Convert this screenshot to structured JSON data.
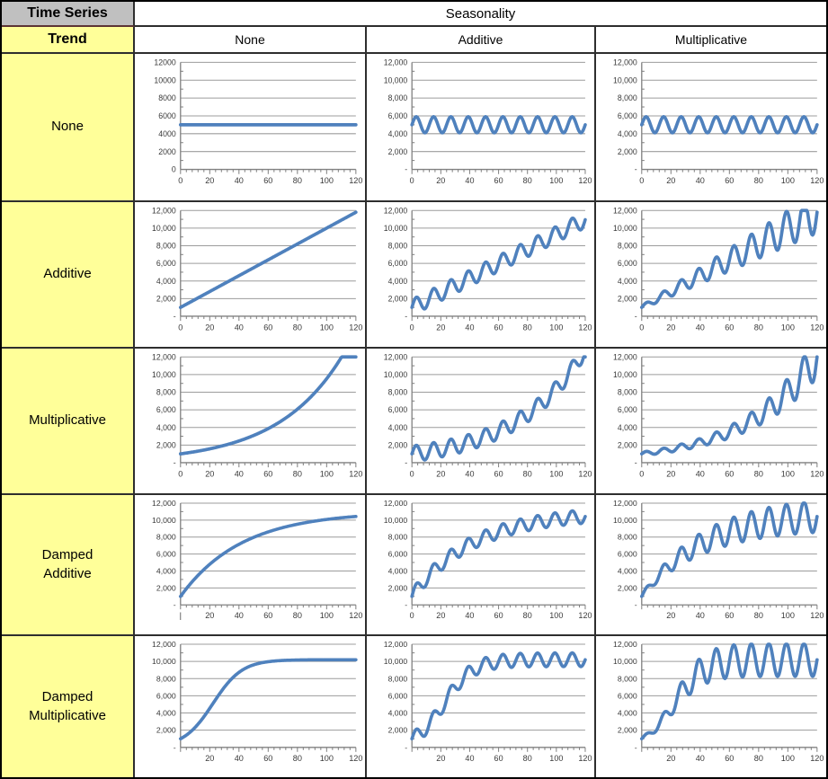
{
  "table": {
    "corner_label": "Time Series",
    "seasonality_header": "Seasonality",
    "trend_header": "Trend",
    "col_headers": [
      "None",
      "Additive",
      "Multiplicative"
    ],
    "row_headers": [
      "None",
      "Additive",
      "Multiplicative",
      "Damped\nAdditive",
      "Damped\nMultiplicative"
    ]
  },
  "colors": {
    "line": "#4f81bd",
    "grid": "#9c9c9c",
    "axis": "#808080",
    "tick_label": "#3a3a3a",
    "row_header_bg": "#ffff99",
    "corner_bg": "#c0c0c0"
  },
  "chart_defaults": {
    "xlim": [
      0,
      120
    ],
    "ylim": [
      0,
      12000
    ],
    "y_grid_step": 2000,
    "x_label_step": 20,
    "x_minor_tick_step": 4,
    "seasonal_period": 12,
    "grid": true,
    "legend": false
  },
  "chart_data": [
    {
      "type": "line",
      "row": "None",
      "col": "None",
      "period": 12,
      "y_tick_labels": [
        "12000",
        "10000",
        "8000",
        "6000",
        "4000",
        "2000",
        "0"
      ],
      "x_tick_labels": [
        "0",
        "20",
        "40",
        "60",
        "80",
        "100",
        "120"
      ],
      "model": {
        "trend": "flat",
        "level": 5000,
        "seasonality": "none"
      },
      "summary": {
        "start": 5000,
        "end": 5000
      }
    },
    {
      "type": "line",
      "row": "None",
      "col": "Additive",
      "period": 12,
      "y_tick_labels": [
        "12,000",
        "10,000",
        "8,000",
        "6,000",
        "4,000",
        "2,000",
        "-"
      ],
      "x_tick_labels": [
        "0",
        "20",
        "40",
        "60",
        "80",
        "100",
        "120"
      ],
      "model": {
        "trend": "flat",
        "level": 5000,
        "seasonality": "additive",
        "amp": 900
      },
      "summary": {
        "oscillates_between": [
          4100,
          5900
        ]
      }
    },
    {
      "type": "line",
      "row": "None",
      "col": "Multiplicative",
      "period": 12,
      "y_tick_labels": [
        "12,000",
        "10,000",
        "8,000",
        "6,000",
        "4,000",
        "2,000",
        "-"
      ],
      "x_tick_labels": [
        "0",
        "20",
        "40",
        "60",
        "80",
        "100",
        "120"
      ],
      "model": {
        "trend": "flat",
        "level": 5000,
        "seasonality": "multiplicative",
        "rel": 0.18
      },
      "summary": {
        "oscillates_between": [
          4100,
          5900
        ]
      }
    },
    {
      "type": "line",
      "row": "Additive",
      "col": "None",
      "period": 12,
      "y_tick_labels": [
        "12,000",
        "10,000",
        "8,000",
        "6,000",
        "4,000",
        "2,000",
        "-"
      ],
      "x_tick_labels": [
        "0",
        "20",
        "40",
        "60",
        "80",
        "100",
        "120"
      ],
      "model": {
        "trend": "linear",
        "base": 1000,
        "slope": 90,
        "seasonality": "none"
      },
      "summary": {
        "start": 1000,
        "end": 11800
      }
    },
    {
      "type": "line",
      "row": "Additive",
      "col": "Additive",
      "period": 12,
      "y_tick_labels": [
        "12,000",
        "10,000",
        "8,000",
        "6,000",
        "4,000",
        "2,000",
        "-"
      ],
      "x_tick_labels": [
        "0",
        "20",
        "40",
        "60",
        "80",
        "100",
        "120"
      ],
      "model": {
        "trend": "linear",
        "base": 1000,
        "slope": 83,
        "seasonality": "additive",
        "amp": 900
      },
      "summary": {
        "start": 1000,
        "end_center": 11000,
        "osc_amp": 900
      }
    },
    {
      "type": "line",
      "row": "Additive",
      "col": "Multiplicative",
      "period": 12,
      "y_tick_labels": [
        "12,000",
        "10,000",
        "8,000",
        "6,000",
        "4,000",
        "2,000",
        "-"
      ],
      "x_tick_labels": [
        "0",
        "20",
        "40",
        "60",
        "80",
        "100",
        "120"
      ],
      "model": {
        "trend": "linear",
        "base": 1000,
        "slope": 90,
        "seasonality": "multiplicative",
        "rel": 0.2
      },
      "summary": {
        "start": 1000,
        "end_center": 11800,
        "clipped_at": 12000
      }
    },
    {
      "type": "line",
      "row": "Multiplicative",
      "col": "None",
      "period": 12,
      "y_tick_labels": [
        "12,000",
        "10,000",
        "8,000",
        "6,000",
        "4,000",
        "2,000",
        "-"
      ],
      "x_tick_labels": [
        "0",
        "20",
        "40",
        "60",
        "80",
        "100",
        "120"
      ],
      "model": {
        "trend": "exponential",
        "base": 1000,
        "growth": 1.0228,
        "seasonality": "none"
      },
      "summary": {
        "start": 1000,
        "reaches_ymax_at_x": 110,
        "clipped_at": 12000
      }
    },
    {
      "type": "line",
      "row": "Multiplicative",
      "col": "Additive",
      "period": 12,
      "y_tick_labels": [
        "12,000",
        "10,000",
        "8,000",
        "6,000",
        "4,000",
        "2,000",
        "-"
      ],
      "x_tick_labels": [
        "0",
        "20",
        "40",
        "60",
        "80",
        "100",
        "120"
      ],
      "model": {
        "trend": "exponential",
        "base": 1000,
        "growth": 1.0215,
        "seasonality": "additive",
        "amp": 900
      },
      "summary": {
        "start": 1000,
        "osc_amp": 900,
        "clipped_at": 12000
      }
    },
    {
      "type": "line",
      "row": "Multiplicative",
      "col": "Multiplicative",
      "period": 12,
      "y_tick_labels": [
        "12,000",
        "10,000",
        "8,000",
        "6,000",
        "4,000",
        "2,000",
        "-"
      ],
      "x_tick_labels": [
        "0",
        "20",
        "40",
        "60",
        "80",
        "100",
        "120"
      ],
      "model": {
        "trend": "exponential",
        "base": 1000,
        "growth": 1.021,
        "seasonality": "multiplicative",
        "rel": 0.2
      },
      "summary": {
        "start": 1000,
        "clipped_at": 12000
      }
    },
    {
      "type": "line",
      "row": "Damped Additive",
      "col": "None",
      "period": 12,
      "y_tick_labels": [
        "12,000",
        "10,000",
        "8,000",
        "6,000",
        "4,000",
        "2,000",
        "-"
      ],
      "x_tick_labels": [
        "|",
        "20",
        "40",
        "60",
        "80",
        "100",
        "120"
      ],
      "model": {
        "trend": "damped_additive",
        "base": 1000,
        "gain": 10000,
        "tau": 42,
        "seasonality": "none"
      },
      "summary": {
        "start": 1000,
        "end": 10400,
        "asymptote": 11000
      }
    },
    {
      "type": "line",
      "row": "Damped Additive",
      "col": "Additive",
      "period": 12,
      "y_tick_labels": [
        "12,000",
        "10,000",
        "8,000",
        "6,000",
        "4,000",
        "2,000",
        "-"
      ],
      "x_tick_labels": [
        "0",
        "20",
        "40",
        "60",
        "80",
        "100",
        "120"
      ],
      "model": {
        "trend": "damped_additive",
        "base": 1000,
        "gain": 10000,
        "tau": 42,
        "seasonality": "additive",
        "amp": 800
      },
      "summary": {
        "start": 1000,
        "end_center": 10400,
        "osc_amp": 800
      }
    },
    {
      "type": "line",
      "row": "Damped Additive",
      "col": "Multiplicative",
      "period": 12,
      "y_tick_labels": [
        "12,000",
        "10,000",
        "8,000",
        "6,000",
        "4,000",
        "2,000",
        "-"
      ],
      "x_tick_labels": [
        "",
        "20",
        "40",
        "60",
        "80",
        "100",
        "120"
      ],
      "model": {
        "trend": "damped_additive",
        "base": 1000,
        "gain": 10000,
        "tau": 42,
        "seasonality": "multiplicative",
        "rel": 0.18
      },
      "summary": {
        "start": 1000,
        "end_osc_between": [
          8550,
          12000
        ]
      }
    },
    {
      "type": "line",
      "row": "Damped Multiplicative",
      "col": "None",
      "period": 12,
      "y_tick_labels": [
        "12,000",
        "10,000",
        "8,000",
        "6,000",
        "4,000",
        "2,000",
        "-"
      ],
      "x_tick_labels": [
        "",
        "20",
        "40",
        "60",
        "80",
        "100",
        "120"
      ],
      "model": {
        "trend": "damped_multiplicative",
        "cap": 10200,
        "a": 9.2,
        "tau": 10,
        "seasonality": "none"
      },
      "summary": {
        "start": 1000,
        "end": 10200,
        "saturates_by_x": 70
      }
    },
    {
      "type": "line",
      "row": "Damped Multiplicative",
      "col": "Additive",
      "period": 12,
      "y_tick_labels": [
        "12,000",
        "10,000",
        "8,000",
        "6,000",
        "4,000",
        "2,000",
        "-"
      ],
      "x_tick_labels": [
        "",
        "20",
        "40",
        "60",
        "80",
        "100",
        "120"
      ],
      "model": {
        "trend": "damped_multiplicative",
        "cap": 10200,
        "a": 9.2,
        "tau": 10,
        "seasonality": "additive",
        "amp": 800
      },
      "summary": {
        "start": 1000,
        "end_osc_between": [
          9400,
          11000
        ]
      }
    },
    {
      "type": "line",
      "row": "Damped Multiplicative",
      "col": "Multiplicative",
      "period": 12,
      "y_tick_labels": [
        "12,000",
        "10,000",
        "8,000",
        "6,000",
        "4,000",
        "2,000",
        "-"
      ],
      "x_tick_labels": [
        "",
        "20",
        "40",
        "60",
        "80",
        "100",
        "120"
      ],
      "model": {
        "trend": "damped_multiplicative",
        "cap": 10200,
        "a": 9.2,
        "tau": 10,
        "seasonality": "multiplicative",
        "rel": 0.19
      },
      "summary": {
        "start": 1000,
        "end_osc_between": [
          8260,
          12000
        ],
        "clipped_at": 12000
      }
    }
  ]
}
